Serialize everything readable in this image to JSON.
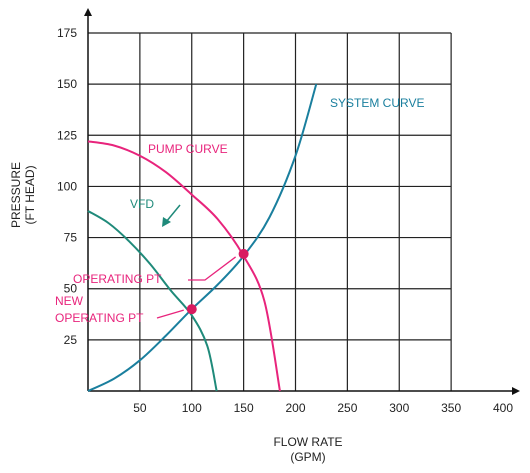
{
  "chart_data": {
    "type": "line",
    "xlabel": [
      "FLOW RATE",
      "(GPM)"
    ],
    "ylabel": [
      "PRESSURE",
      "(FT HEAD)"
    ],
    "xlim": [
      0,
      400
    ],
    "ylim": [
      0,
      175
    ],
    "x_ticks": [
      "50",
      "100",
      "150",
      "200",
      "250",
      "300",
      "350",
      "400"
    ],
    "y_ticks": [
      "25",
      "50",
      "75",
      "100",
      "125",
      "150",
      "175"
    ],
    "grid": true,
    "series": [
      {
        "name": "SYSTEM CURVE",
        "color": "#1a7f9e",
        "x": [
          0,
          25,
          50,
          75,
          100,
          125,
          150,
          175,
          200,
          220
        ],
        "y": [
          0,
          6,
          15,
          27,
          40,
          52,
          66,
          85,
          115,
          150
        ]
      },
      {
        "name": "PUMP CURVE",
        "color": "#e8247c",
        "x": [
          0,
          25,
          50,
          75,
          100,
          125,
          150,
          170,
          185
        ],
        "y": [
          122,
          120,
          115,
          107,
          96,
          84,
          66,
          44,
          0
        ]
      },
      {
        "name": "VFD",
        "color": "#1f8a7a",
        "x": [
          0,
          20,
          40,
          60,
          80,
          100,
          115,
          124
        ],
        "y": [
          88,
          82,
          73,
          62,
          49,
          37,
          22,
          0
        ]
      }
    ],
    "points": [
      {
        "label": "OPERATING PT",
        "x": 150,
        "y": 67,
        "color": "#d81b60"
      },
      {
        "label": "NEW OPERATING PT",
        "x": 100,
        "y": 40,
        "color": "#d81b60"
      }
    ],
    "annotations": {
      "system_curve": "SYSTEM CURVE",
      "pump_curve": "PUMP CURVE",
      "vfd": "VFD",
      "operating_pt": "OPERATING PT",
      "new_operating_pt_line1": "NEW",
      "new_operating_pt_line2": "OPERATING PT"
    }
  }
}
